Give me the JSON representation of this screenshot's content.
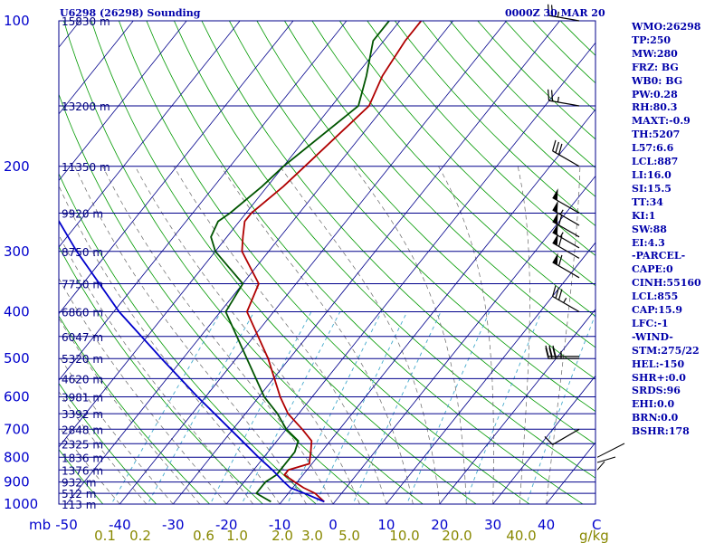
{
  "header": {
    "station": "U6298 (26298) Sounding",
    "time": "0000Z 30 MAR 20"
  },
  "stats": [
    "WMO:26298",
    "TP:250",
    "MW:280",
    "FRZ: BG",
    "WB0: BG",
    "PW:0.28",
    "RH:80.3",
    "MAXT:-0.9",
    "TH:5207",
    "L57:6.6",
    "LCL:887",
    "LI:16.0",
    "SI:15.5",
    "TT:34",
    "KI:1",
    "SW:88",
    "EI:4.3",
    "-PARCEL-",
    "CAPE:0",
    "CINH:55160",
    "LCL:855",
    "CAP:15.9",
    "LFC:-1",
    "-WIND-",
    "STM:275/22",
    "HEL:-150",
    "SHR+:0.0",
    "SRDS:96",
    "EHI:0.0",
    "BRN:0.0",
    "BSHR:178"
  ],
  "colors": {
    "isobar": "#00008b",
    "skewed_isotherm": "#00008b",
    "dry_adiabat": "#009900",
    "moist_adiabat": "#666666",
    "mixing_ratio": "#44aacc",
    "temperature": "#b00000",
    "dewpoint": "#005500",
    "parcel": "#0000cc",
    "axis_text": "#0000cc",
    "mixing_ratio_text": "#888800"
  },
  "chart_data": {
    "type": "line",
    "title": "U6298 (26298) Sounding",
    "pressure_axis": {
      "unit_label": "mb",
      "scale": "log",
      "range_mb": [
        1000,
        100
      ],
      "tick_labels": [
        100,
        200,
        300,
        400,
        500,
        600,
        700,
        800,
        900,
        1000
      ]
    },
    "temperature_axis": {
      "unit_label": "C",
      "range_c": [
        -50,
        50
      ],
      "tick_labels": [
        -50,
        -40,
        -30,
        -20,
        -10,
        0,
        10,
        20,
        30,
        40
      ]
    },
    "mixing_ratio_axis": {
      "unit_label": "g/kg",
      "tick_labels": [
        "0.1",
        "0.2",
        "0.6",
        "1.0",
        "2.0",
        "3.0",
        "5.0",
        "10.0",
        "20.0",
        "40.0"
      ]
    },
    "height_labels": [
      {
        "p": 100,
        "label": "15830 m"
      },
      {
        "p": 150,
        "label": "13200 m"
      },
      {
        "p": 200,
        "label": "11350 m"
      },
      {
        "p": 250,
        "label": "9920 m"
      },
      {
        "p": 300,
        "label": "8750 m"
      },
      {
        "p": 350,
        "label": "7750 m"
      },
      {
        "p": 400,
        "label": "6860 m"
      },
      {
        "p": 450,
        "label": "6047 m"
      },
      {
        "p": 500,
        "label": "5320 m"
      },
      {
        "p": 550,
        "label": "4620 m"
      },
      {
        "p": 600,
        "label": "3981 m"
      },
      {
        "p": 650,
        "label": "3392 m"
      },
      {
        "p": 700,
        "label": "2848 m"
      },
      {
        "p": 750,
        "label": "2325 m"
      },
      {
        "p": 800,
        "label": "1836 m"
      },
      {
        "p": 850,
        "label": "1376 m"
      },
      {
        "p": 900,
        "label": "932 m"
      },
      {
        "p": 950,
        "label": "512 m"
      },
      {
        "p": 1000,
        "label": "113 m"
      }
    ],
    "series": [
      {
        "key": "temperature",
        "points": [
          {
            "p": 989,
            "t": -2.0
          },
          {
            "p": 950,
            "t": -5.0
          },
          {
            "p": 925,
            "t": -8.0
          },
          {
            "p": 900,
            "t": -10.5
          },
          {
            "p": 870,
            "t": -13.5
          },
          {
            "p": 850,
            "t": -13.5
          },
          {
            "p": 825,
            "t": -10.5
          },
          {
            "p": 780,
            "t": -12.0
          },
          {
            "p": 740,
            "t": -13.5
          },
          {
            "p": 700,
            "t": -17.0
          },
          {
            "p": 650,
            "t": -22.0
          },
          {
            "p": 600,
            "t": -26.0
          },
          {
            "p": 500,
            "t": -34.0
          },
          {
            "p": 400,
            "t": -45.0
          },
          {
            "p": 350,
            "t": -47.0
          },
          {
            "p": 300,
            "t": -55.0
          },
          {
            "p": 280,
            "t": -57.0
          },
          {
            "p": 260,
            "t": -59.0
          },
          {
            "p": 250,
            "t": -59.0
          },
          {
            "p": 220,
            "t": -57.0
          },
          {
            "p": 200,
            "t": -56.0
          },
          {
            "p": 150,
            "t": -53.0
          },
          {
            "p": 130,
            "t": -55.0
          },
          {
            "p": 110,
            "t": -56.0
          },
          {
            "p": 100,
            "t": -56.0
          }
        ]
      },
      {
        "key": "dewpoint",
        "points": [
          {
            "p": 989,
            "t": -12.0
          },
          {
            "p": 950,
            "t": -16.0
          },
          {
            "p": 925,
            "t": -16.0
          },
          {
            "p": 900,
            "t": -16.0
          },
          {
            "p": 870,
            "t": -15.0
          },
          {
            "p": 850,
            "t": -15.0
          },
          {
            "p": 800,
            "t": -15.0
          },
          {
            "p": 780,
            "t": -15.0
          },
          {
            "p": 740,
            "t": -16.0
          },
          {
            "p": 700,
            "t": -20.0
          },
          {
            "p": 650,
            "t": -24.0
          },
          {
            "p": 600,
            "t": -29.0
          },
          {
            "p": 500,
            "t": -38.0
          },
          {
            "p": 400,
            "t": -49.0
          },
          {
            "p": 350,
            "t": -50.0
          },
          {
            "p": 300,
            "t": -60.0
          },
          {
            "p": 280,
            "t": -63.0
          },
          {
            "p": 260,
            "t": -64.0
          },
          {
            "p": 250,
            "t": -63.0
          },
          {
            "p": 220,
            "t": -61.0
          },
          {
            "p": 200,
            "t": -60.0
          },
          {
            "p": 150,
            "t": -55.0
          },
          {
            "p": 130,
            "t": -58.0
          },
          {
            "p": 110,
            "t": -62.0
          },
          {
            "p": 100,
            "t": -62.0
          }
        ]
      },
      {
        "key": "parcel",
        "points": [
          {
            "p": 989,
            "t": -2.0
          },
          {
            "p": 950,
            "t": -7.0
          },
          {
            "p": 925,
            "t": -10.5
          },
          {
            "p": 900,
            "t": -12.5
          },
          {
            "p": 850,
            "t": -16.5
          },
          {
            "p": 800,
            "t": -21.0
          },
          {
            "p": 700,
            "t": -30.5
          },
          {
            "p": 600,
            "t": -41.5
          },
          {
            "p": 500,
            "t": -54.0
          },
          {
            "p": 400,
            "t": -69.0
          },
          {
            "p": 300,
            "t": -86.0
          },
          {
            "p": 250,
            "t": -96.0
          },
          {
            "p": 200,
            "t": -108.0
          },
          {
            "p": 150,
            "t": -122.0
          },
          {
            "p": 120,
            "t": -132.0
          }
        ]
      }
    ],
    "wind_barbs_p": [
      100,
      150,
      200,
      250,
      265,
      280,
      295,
      310,
      340,
      400,
      495,
      500,
      700
    ],
    "wind_barbs_dir_deg": [
      280,
      280,
      300,
      300,
      300,
      300,
      300,
      300,
      300,
      300,
      270,
      270,
      240
    ],
    "wind_barbs_speed_kt": [
      25,
      25,
      30,
      50,
      55,
      60,
      55,
      60,
      60,
      35,
      35,
      35,
      10
    ],
    "grid": true
  }
}
